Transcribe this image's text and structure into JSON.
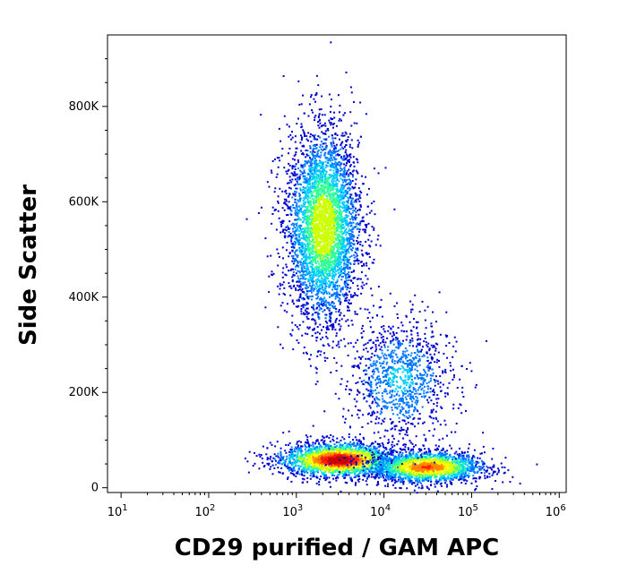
{
  "chart_data": {
    "type": "scatter",
    "title": "",
    "xlabel": "CD29 purified / GAM APC",
    "ylabel": "Side Scatter",
    "x_scale": "log",
    "xlim": [
      7,
      1200000
    ],
    "ylim": [
      -10000,
      950000
    ],
    "x_ticks": [
      {
        "value": 10,
        "base": "10",
        "exp": "1"
      },
      {
        "value": 100,
        "base": "10",
        "exp": "2"
      },
      {
        "value": 1000,
        "base": "10",
        "exp": "3"
      },
      {
        "value": 10000,
        "base": "10",
        "exp": "4"
      },
      {
        "value": 100000,
        "base": "10",
        "exp": "5"
      },
      {
        "value": 1000000,
        "base": "10",
        "exp": "6"
      }
    ],
    "y_ticks": [
      {
        "value": 0,
        "label": "0"
      },
      {
        "value": 200000,
        "label": "200K"
      },
      {
        "value": 400000,
        "label": "400K"
      },
      {
        "value": 600000,
        "label": "600K"
      },
      {
        "value": 800000,
        "label": "800K"
      }
    ],
    "density_colormap": [
      "#0000cc",
      "#0077ff",
      "#00ccff",
      "#33ff99",
      "#ccff00",
      "#ffff00",
      "#ff8800",
      "#ff2200",
      "#cc0000"
    ],
    "populations": [
      {
        "x_center": 2000,
        "y_center": 550000,
        "x_spread_log10": 0.18,
        "y_spread": 85000,
        "peak_density": 0.55
      },
      {
        "x_center": 3000,
        "y_center": 60000,
        "x_spread_log10": 0.28,
        "y_spread": 15000,
        "peak_density": 1.0
      },
      {
        "x_center": 30000,
        "y_center": 45000,
        "x_spread_log10": 0.28,
        "y_spread": 14000,
        "peak_density": 0.8
      },
      {
        "x_center": 15000,
        "y_center": 230000,
        "x_spread_log10": 0.25,
        "y_spread": 55000,
        "peak_density": 0.25
      }
    ]
  },
  "labels": {
    "x_axis_title": "CD29 purified / GAM APC",
    "y_axis_title": "Side Scatter"
  }
}
